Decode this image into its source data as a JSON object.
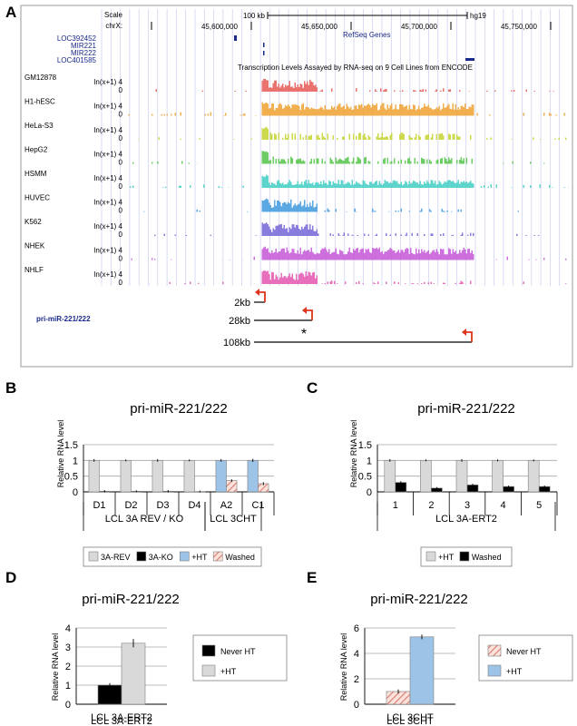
{
  "panels": {
    "A": "A",
    "B": "B",
    "C": "C",
    "D": "D",
    "E": "E"
  },
  "browser": {
    "scale_label": "Scale",
    "chr_label": "chrX:",
    "scale_bar": "100 kb",
    "assembly": "hg19",
    "coords": [
      "45,600,000",
      "45,650,000",
      "45,700,000",
      "45,750,000"
    ],
    "refseq": "RefSeq Genes",
    "genes": [
      "LOC392452",
      "MIR221",
      "MIR222",
      "LOC401585"
    ],
    "encode_title": "Transcription Levels Assayed by RNA-seq on 9 Cell Lines from ENCODE",
    "track_scale_top": "ln(x+1) 4",
    "track_scale_zero": "0",
    "tracks": [
      {
        "name": "GM12878",
        "color": "#e8645f"
      },
      {
        "name": "H1-hESC",
        "color": "#f0a63c"
      },
      {
        "name": "HeLa-S3",
        "color": "#c8d63a"
      },
      {
        "name": "HepG2",
        "color": "#5ec653"
      },
      {
        "name": "HSMM",
        "color": "#4bd0c8"
      },
      {
        "name": "HUVEC",
        "color": "#4a9ee0"
      },
      {
        "name": "K562",
        "color": "#7b6fd8"
      },
      {
        "name": "NHEK",
        "color": "#c85fd8"
      },
      {
        "name": "NHLF",
        "color": "#e45fb4"
      }
    ],
    "pri_label": "pri-miR-221/222",
    "tss": [
      "2kb",
      "28kb",
      "108kb"
    ],
    "asterisk": "*"
  },
  "chart_data": [
    {
      "type": "bar",
      "panel": "B",
      "title": "pri-miR-221/222",
      "ylabel": "Relative RNA level",
      "ylim": [
        0,
        1.5
      ],
      "yticks": [
        "0",
        "0.5",
        "1",
        "1.5"
      ],
      "categories": [
        "D1",
        "D2",
        "D3",
        "D4",
        "A2",
        "C1"
      ],
      "groups": [
        "LCL 3A REV / KO",
        "LCL 3CHT"
      ],
      "series": [
        {
          "name": "3A-REV",
          "color": "#d9d9d9",
          "values": [
            1,
            1,
            1,
            1,
            null,
            null
          ]
        },
        {
          "name": "3A-KO",
          "color": "#000000",
          "values": [
            0.02,
            0.02,
            0.02,
            0.01,
            null,
            null
          ]
        },
        {
          "name": "+HT",
          "color": "#9dc3e6",
          "values": [
            null,
            null,
            null,
            null,
            1,
            1
          ]
        },
        {
          "name": "Washed",
          "color": "hatch-pink",
          "values": [
            null,
            null,
            null,
            null,
            0.36,
            0.26
          ]
        }
      ]
    },
    {
      "type": "bar",
      "panel": "C",
      "title": "pri-miR-221/222",
      "ylabel": "Relative RNA level",
      "ylim": [
        0,
        1.5
      ],
      "yticks": [
        "0",
        "0.5",
        "1",
        "1.5"
      ],
      "categories": [
        "1",
        "2",
        "3",
        "4",
        "5"
      ],
      "groups": [
        "LCL 3A-ERT2"
      ],
      "series": [
        {
          "name": "+HT",
          "color": "#d9d9d9",
          "values": [
            1,
            1,
            1,
            1,
            1
          ]
        },
        {
          "name": "Washed",
          "color": "#000000",
          "values": [
            0.3,
            0.12,
            0.22,
            0.17,
            0.17
          ]
        }
      ]
    },
    {
      "type": "bar",
      "panel": "D",
      "title": "pri-miR-221/222",
      "ylabel": "Relative RNA level",
      "ylim": [
        0,
        4
      ],
      "yticks": [
        "0",
        "1",
        "2",
        "3",
        "4"
      ],
      "categories": [
        "LCL 3A-ERT2"
      ],
      "series": [
        {
          "name": "Never HT",
          "color": "#000000",
          "values": [
            1
          ]
        },
        {
          "name": "+HT",
          "color": "#d9d9d9",
          "values": [
            3.2
          ]
        }
      ]
    },
    {
      "type": "bar",
      "panel": "E",
      "title": "pri-miR-221/222",
      "ylabel": "Relative RNA level",
      "ylim": [
        0,
        6
      ],
      "yticks": [
        "0",
        "2",
        "4",
        "6"
      ],
      "categories": [
        "LCL 3CHT"
      ],
      "series": [
        {
          "name": "Never HT",
          "color": "hatch-pink",
          "values": [
            1
          ]
        },
        {
          "name": "+HT",
          "color": "#9dc3e6",
          "values": [
            5.3
          ]
        }
      ]
    }
  ]
}
